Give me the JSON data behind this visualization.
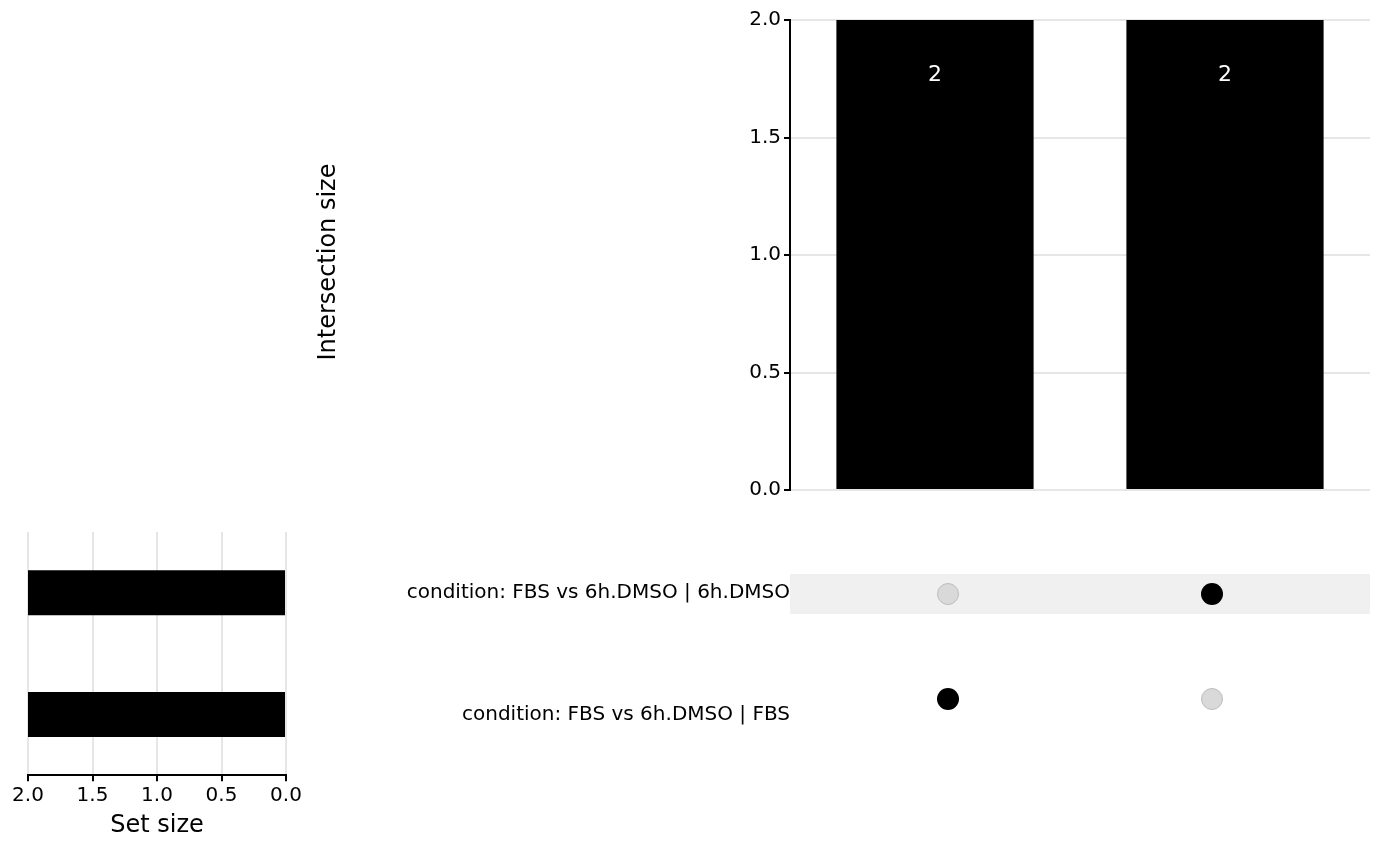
{
  "chart_data": [
    {
      "type": "bar",
      "ylabel": "Intersection size",
      "categories": [
        null,
        null
      ],
      "values": [
        2,
        2
      ],
      "color": "#000000",
      "ylim": [
        0,
        2
      ],
      "yticks": [
        {
          "value": 0,
          "label": "0.0"
        },
        0.5,
        {
          "value": 1,
          "label": "1.0"
        },
        1.5,
        {
          "value": 2,
          "label": "2.0"
        }
      ],
      "grid": "y",
      "data_labels": true,
      "tick_labels": "y"
    },
    {
      "type": "bar",
      "orientation": "horizontal",
      "xlabel": "Set size",
      "categories": [
        "condition: FBS vs 6h.DMSO | 6h.DMSO",
        "condition: FBS vs 6h.DMSO | FBS"
      ],
      "values": [
        2,
        2
      ],
      "color": "#000000",
      "xlim": [
        2,
        0
      ],
      "xticks": [
        {
          "value": 0,
          "label": "0.0"
        },
        0.5,
        {
          "value": 1,
          "label": "1.0"
        },
        1.5,
        {
          "value": 2,
          "label": "2.0"
        }
      ],
      "grid": "x"
    }
  ]
}
